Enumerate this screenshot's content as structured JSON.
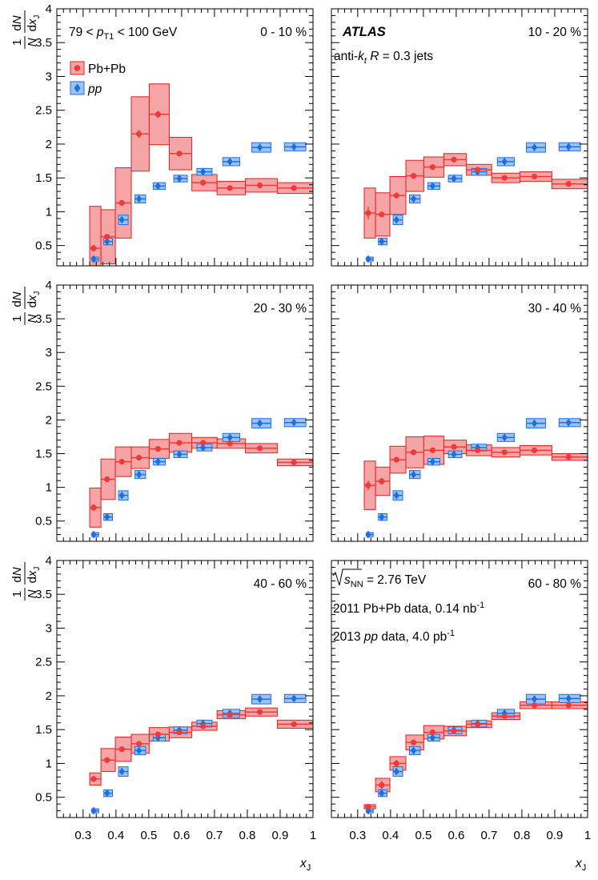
{
  "figure": {
    "ylabel": {
      "one": "1",
      "N": "N",
      "dN": "dN",
      "dx": "dx",
      "J": "J"
    },
    "xlabel": {
      "x": "x",
      "J": "J"
    },
    "kin_label": {
      "pre": "79 < ",
      "p": "p",
      "sub": "T1",
      "post": " < 100 GeV"
    },
    "experiment": "ATLAS",
    "jet_label": {
      "pre": "anti-",
      "k": "k",
      "sub": "t",
      "mid": "  ",
      "R": "R",
      "post": " = 0.3 jets"
    },
    "legend": [
      {
        "key": "pbpb",
        "label": "Pb+Pb",
        "italic": false
      },
      {
        "key": "pp",
        "label": "pp",
        "italic": true
      }
    ],
    "energy_label": {
      "s": "s",
      "sub": "NN",
      "post": " = 2.76 TeV"
    },
    "data_label_1": {
      "pre": "2011 Pb+Pb data, 0.14 nb",
      "sup": "-1"
    },
    "data_label_2": {
      "pre": "2013 ",
      "pp": "pp",
      "post": " data, 4.0 pb",
      "sup": "-1"
    },
    "colors": {
      "pbpb_marker": "#f03a3a",
      "pbpb_fill": "#f5a5a5",
      "pbpb_edge": "#e02020",
      "pp_marker": "#1e6fe0",
      "pp_fill": "#9ec3f2",
      "pp_edge": "#1e6fe0"
    }
  },
  "chart_data": {
    "type": "scatter",
    "xlabel": "xJ",
    "ylabel": "1/N dN/dxJ",
    "xlim": [
      0.22,
      1.0
    ],
    "ylim": [
      0.2,
      4.0
    ],
    "xticks": [
      "0.3",
      "0.4",
      "0.5",
      "0.6",
      "0.7",
      "0.8",
      "0.9",
      "1"
    ],
    "yticks": [
      "0.5",
      "1",
      "1.5",
      "2",
      "2.5",
      "3",
      "3.5",
      "4"
    ],
    "bin_edges": [
      0.32,
      0.3543,
      0.3981,
      0.4467,
      0.5012,
      0.5623,
      0.631,
      0.7079,
      0.7943,
      0.8913,
      1.0
    ],
    "bin_centers": [
      0.332,
      0.373,
      0.418,
      0.47,
      0.528,
      0.593,
      0.665,
      0.747,
      0.838,
      0.942
    ],
    "pp": {
      "values": [
        0.3,
        0.56,
        0.88,
        1.19,
        1.38,
        1.49,
        1.59,
        1.74,
        1.95,
        1.96
      ],
      "syst": [
        0.03,
        0.05,
        0.07,
        0.06,
        0.05,
        0.05,
        0.05,
        0.06,
        0.07,
        0.06
      ]
    },
    "panels": [
      {
        "centrality": "0 - 10 %",
        "pbpb": {
          "values": [
            0.46,
            0.63,
            1.13,
            2.15,
            2.44,
            1.86,
            1.43,
            1.35,
            1.39,
            1.35
          ],
          "syst": [
            0.62,
            0.4,
            0.52,
            0.55,
            0.45,
            0.24,
            0.12,
            0.1,
            0.1,
            0.08
          ],
          "stat": [
            0.05,
            0.04,
            0.03,
            0.06,
            0.05,
            0.03,
            0.02,
            0.02,
            0.02,
            0.02
          ]
        }
      },
      {
        "centrality": "10 - 20 %",
        "pbpb": {
          "values": [
            0.98,
            0.96,
            1.24,
            1.53,
            1.66,
            1.77,
            1.62,
            1.5,
            1.52,
            1.41
          ],
          "syst": [
            0.37,
            0.32,
            0.28,
            0.23,
            0.15,
            0.09,
            0.08,
            0.07,
            0.07,
            0.07
          ],
          "stat": [
            0.09,
            0.04,
            0.03,
            0.03,
            0.03,
            0.03,
            0.02,
            0.02,
            0.02,
            0.02
          ]
        }
      },
      {
        "centrality": "20 - 30 %",
        "pbpb": {
          "values": [
            0.7,
            1.12,
            1.38,
            1.44,
            1.57,
            1.66,
            1.66,
            1.65,
            1.58,
            1.37
          ],
          "syst": [
            0.29,
            0.3,
            0.22,
            0.16,
            0.14,
            0.14,
            0.08,
            0.07,
            0.07,
            0.05
          ],
          "stat": [
            0.05,
            0.04,
            0.03,
            0.03,
            0.03,
            0.03,
            0.02,
            0.02,
            0.02,
            0.02
          ]
        }
      },
      {
        "centrality": "30 - 40 %",
        "pbpb": {
          "values": [
            1.03,
            1.09,
            1.41,
            1.52,
            1.55,
            1.6,
            1.55,
            1.52,
            1.55,
            1.45
          ],
          "syst": [
            0.36,
            0.21,
            0.2,
            0.23,
            0.21,
            0.1,
            0.08,
            0.07,
            0.07,
            0.05
          ],
          "stat": [
            0.07,
            0.05,
            0.03,
            0.03,
            0.03,
            0.03,
            0.02,
            0.02,
            0.02,
            0.02
          ]
        }
      },
      {
        "centrality": "40 - 60 %",
        "pbpb": {
          "values": [
            0.77,
            1.05,
            1.21,
            1.29,
            1.43,
            1.46,
            1.55,
            1.72,
            1.76,
            1.58
          ],
          "syst": [
            0.09,
            0.17,
            0.18,
            0.14,
            0.1,
            0.08,
            0.06,
            0.06,
            0.06,
            0.06
          ],
          "stat": [
            0.04,
            0.03,
            0.03,
            0.02,
            0.02,
            0.02,
            0.02,
            0.02,
            0.02,
            0.02
          ]
        }
      },
      {
        "centrality": "60 - 80 %",
        "pbpb": {
          "values": [
            0.36,
            0.68,
            1.0,
            1.31,
            1.46,
            1.48,
            1.58,
            1.7,
            1.86,
            1.86
          ],
          "syst": [
            0.03,
            0.1,
            0.1,
            0.11,
            0.1,
            0.07,
            0.05,
            0.05,
            0.05,
            0.05
          ],
          "stat": [
            0.03,
            0.06,
            0.05,
            0.04,
            0.03,
            0.03,
            0.03,
            0.03,
            0.03,
            0.03
          ]
        }
      }
    ]
  }
}
